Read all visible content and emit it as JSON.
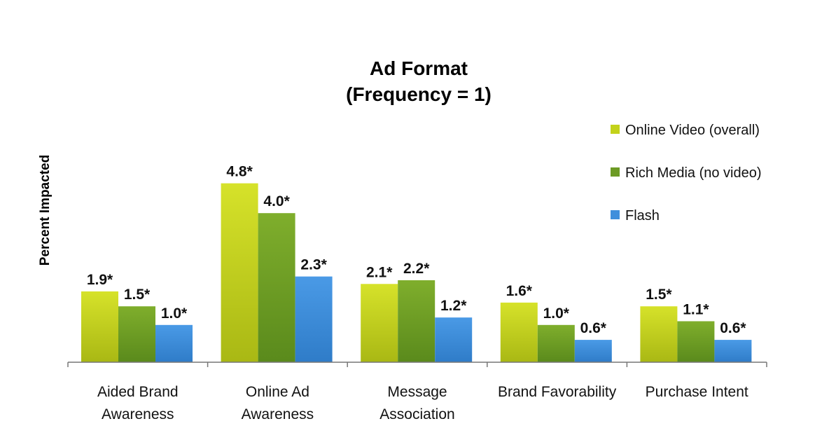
{
  "chart_data": {
    "type": "bar",
    "title": [
      "Ad Format",
      "(Frequency = 1)"
    ],
    "ylabel": "Percent Impacted",
    "xlabel": "",
    "ylim": [
      0,
      5
    ],
    "grid": false,
    "legend_position": "right",
    "categories": [
      [
        "Aided Brand",
        "Awareness"
      ],
      [
        "Online Ad",
        "Awareness"
      ],
      [
        "Message",
        "Association"
      ],
      [
        "Brand Favorability"
      ],
      [
        "Purchase Intent"
      ]
    ],
    "series": [
      {
        "name": "Online Video (overall)",
        "color": "#c3d21a",
        "values": [
          1.9,
          4.8,
          2.1,
          1.6,
          1.5
        ],
        "labels": [
          "1.9*",
          "4.8*",
          "2.1*",
          "1.6*",
          "1.5*"
        ]
      },
      {
        "name": "Rich Media (no video)",
        "color": "#6c9a24",
        "values": [
          1.5,
          4.0,
          2.2,
          1.0,
          1.1
        ],
        "labels": [
          "1.5*",
          "4.0*",
          "2.2*",
          "1.0*",
          "1.1*"
        ]
      },
      {
        "name": "Flash",
        "color": "#3f8fdc",
        "values": [
          1.0,
          2.3,
          1.2,
          0.6,
          0.6
        ],
        "labels": [
          "1.0*",
          "2.3*",
          "1.2*",
          "0.6*",
          "0.6*"
        ]
      }
    ]
  }
}
